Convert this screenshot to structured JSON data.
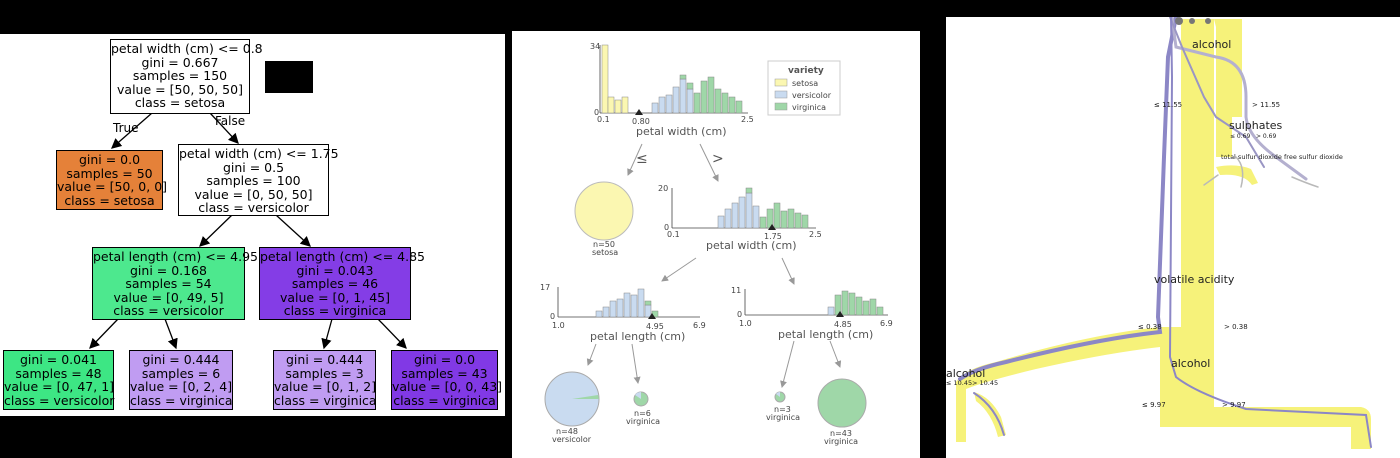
{
  "tree1": {
    "edge_true": "True",
    "edge_false": "False",
    "nodes": [
      {
        "lines": [
          "petal width (cm) <= 0.8",
          "gini = 0.667",
          "samples = 150",
          "value = [50, 50, 50]",
          "class = setosa"
        ],
        "fill": "#ffffff"
      },
      {
        "lines": [
          "gini = 0.0",
          "samples = 50",
          "value = [50, 0, 0]",
          "class = setosa"
        ],
        "fill": "#e58139"
      },
      {
        "lines": [
          "petal width (cm) <= 1.75",
          "gini = 0.5",
          "samples = 100",
          "value = [0, 50, 50]",
          "class = versicolor"
        ],
        "fill": "#ffffff"
      },
      {
        "lines": [
          "petal length (cm) <= 4.95",
          "gini = 0.168",
          "samples = 54",
          "value = [0, 49, 5]",
          "class = versicolor"
        ],
        "fill": "#4de88e"
      },
      {
        "lines": [
          "petal length (cm) <= 4.85",
          "gini = 0.043",
          "samples = 46",
          "value = [0, 1, 45]",
          "class = virginica"
        ],
        "fill": "#843de6"
      },
      {
        "lines": [
          "gini = 0.041",
          "samples = 48",
          "value = [0, 47, 1]",
          "class = versicolor"
        ],
        "fill": "#3de684"
      },
      {
        "lines": [
          "gini = 0.444",
          "samples = 6",
          "value = [0, 2, 4]",
          "class = virginica"
        ],
        "fill": "#c09cf2"
      },
      {
        "lines": [
          "gini = 0.444",
          "samples = 3",
          "value = [0, 1, 2]",
          "class = virginica"
        ],
        "fill": "#c09cf2"
      },
      {
        "lines": [
          "gini = 0.0",
          "samples = 43",
          "value = [0, 0, 43]",
          "class = virginica"
        ],
        "fill": "#8139e5"
      }
    ]
  },
  "tree2": {
    "legend_title": "variety",
    "legend": [
      {
        "label": "setosa",
        "color": "#fbf7b1"
      },
      {
        "label": "versicolor",
        "color": "#c9dbf0"
      },
      {
        "label": "virginica",
        "color": "#9fd7a8"
      }
    ],
    "root": {
      "xlabel": "petal width (cm)",
      "ymax": "34",
      "ymin": "0",
      "xmin": "0.1",
      "xmax": "2.5",
      "split": "0.80"
    },
    "left_symbol": "≤",
    "right_symbol": ">",
    "setosa_leaf": {
      "n": "n=50",
      "class": "setosa"
    },
    "mid": {
      "xlabel": "petal width (cm)",
      "ymax": "20",
      "ymin": "0",
      "xmin": "0.1",
      "xmax": "2.5",
      "split": "1.75"
    },
    "ll": {
      "xlabel": "petal length (cm)",
      "ymax": "17",
      "ymin": "0",
      "xmin": "1.0",
      "xmax": "6.9",
      "split": "4.95"
    },
    "lr": {
      "xlabel": "petal length (cm)",
      "ymax": "11",
      "ymin": "0",
      "xmin": "1.0",
      "xmax": "6.9",
      "split": "4.85"
    },
    "leaves": [
      {
        "n": "n=48",
        "class": "versicolor"
      },
      {
        "n": "n=6",
        "class": "virginica"
      },
      {
        "n": "n=3",
        "class": "virginica"
      },
      {
        "n": "n=43",
        "class": "virginica"
      }
    ]
  },
  "tree3": {
    "labels": {
      "alcohol_top": "alcohol",
      "le_1155": "≤ 11.55",
      "gt_1155": "> 11.55",
      "sulphates": "sulphates",
      "le_069": "≤ 0.69",
      "gt_069": "> 0.69",
      "tsd": "total sulfur dioxide",
      "fsd": "free sulfur dioxide",
      "volatile": "volatile acidity",
      "le_038": "≤ 0.38",
      "gt_038": "> 0.38",
      "alcohol_mid": "alcohol",
      "le_997": "≤ 9.97",
      "gt_997": "> 9.97",
      "alcohol_left": "alcohol",
      "le_1045": "≤ 10.45",
      "gt_1045": "> 10.45"
    },
    "colors": {
      "flow": "#f6f27a",
      "path": "#8c87c6"
    }
  }
}
